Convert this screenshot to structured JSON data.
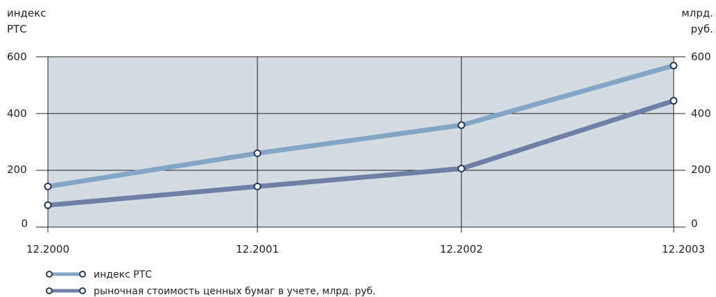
{
  "chart_data": {
    "type": "line",
    "x": [
      "12.2000",
      "12.2001",
      "12.2002",
      "12.2003"
    ],
    "y_left_label": [
      "индекс",
      "РТС"
    ],
    "y_right_label": [
      "млрд.",
      "руб."
    ],
    "yticks": [
      "0",
      "200",
      "400",
      "600"
    ],
    "ylim": [
      0,
      600
    ],
    "grid": true,
    "legend_position": "bottom-left",
    "series": [
      {
        "name": "индекс РТС",
        "values": [
          143,
          260,
          359,
          569
        ],
        "color": "#83a6c7"
      },
      {
        "name": "рыночная стоимость ценных бумаг в учете, млрд. руб.",
        "values": [
          77,
          143,
          206,
          445
        ],
        "color": "#6f7fa6"
      }
    ],
    "plot_background": "#d3dce1"
  }
}
